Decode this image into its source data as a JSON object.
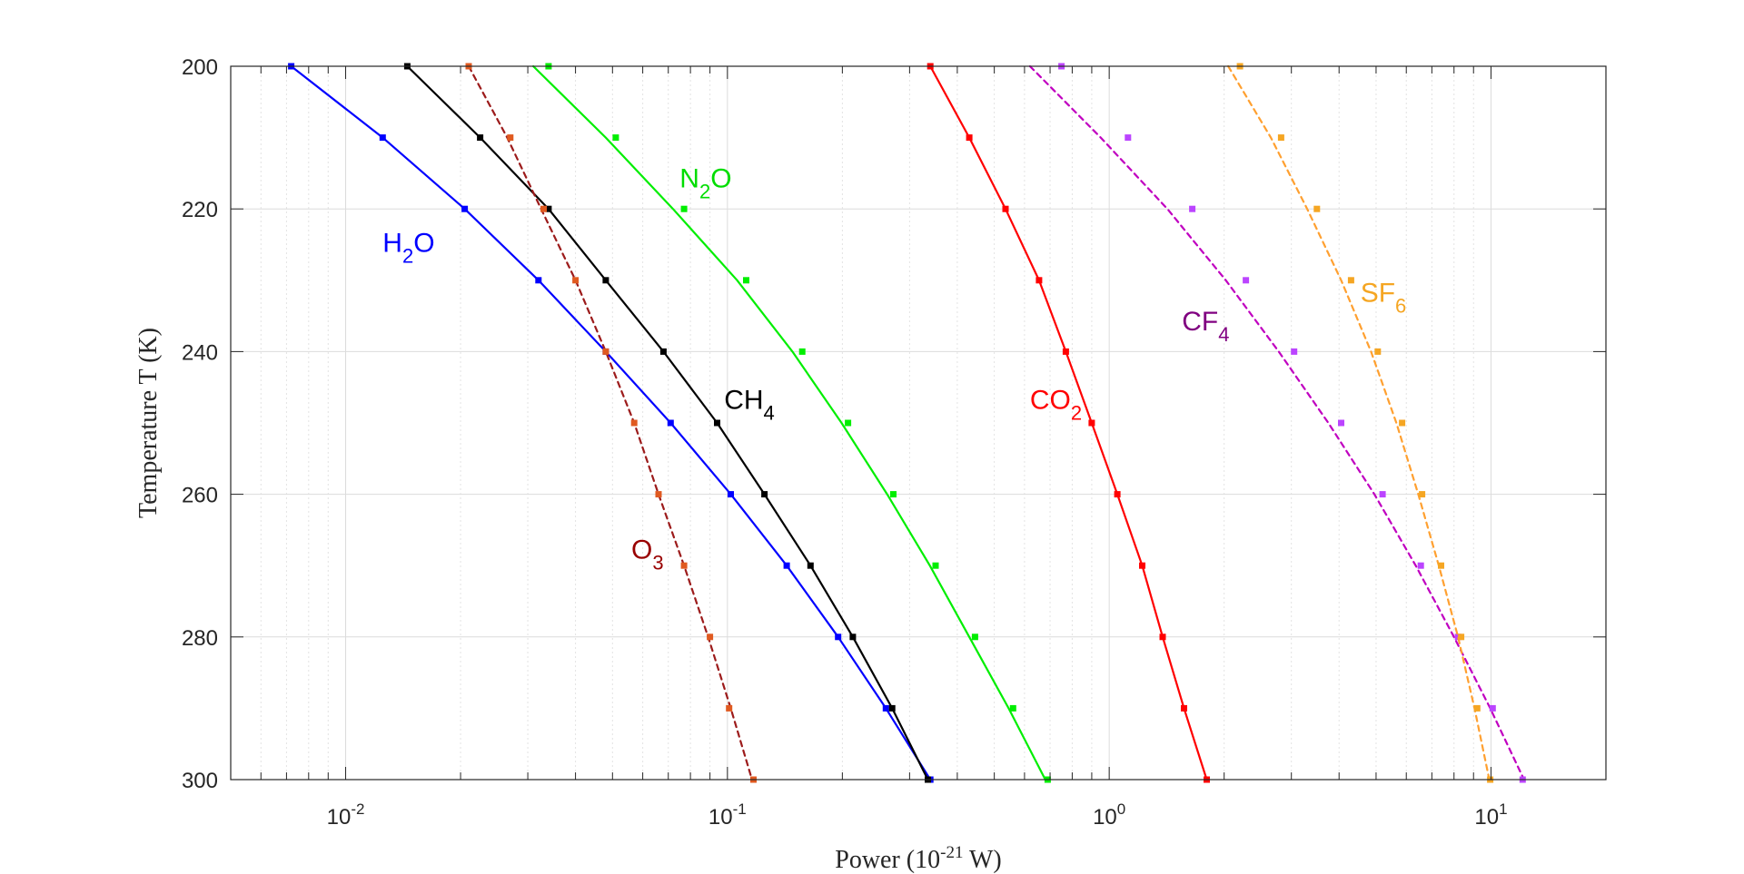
{
  "chart_data": {
    "type": "line",
    "title": "",
    "xlabel": "Power (10",
    "xlabel_exp": "-21",
    "xlabel_unit": " W)",
    "ylabel": "Temperature T (K)",
    "x_scale": "log",
    "xlim": [
      0.005,
      20
    ],
    "ylim": [
      200,
      300
    ],
    "y_reversed": true,
    "grid": true,
    "y_ticks": [
      200,
      220,
      240,
      260,
      280,
      300
    ],
    "y_tick_labels": [
      "200",
      "220",
      "240",
      "260",
      "280",
      "300"
    ],
    "x_ticks": [
      {
        "value": 0.01,
        "base": "10",
        "exp": "-2"
      },
      {
        "value": 0.1,
        "base": "10",
        "exp": "-1"
      },
      {
        "value": 1,
        "base": "10",
        "exp": "0"
      },
      {
        "value": 10,
        "base": "10",
        "exp": "1"
      }
    ],
    "temperatures": [
      200,
      210,
      220,
      230,
      240,
      250,
      260,
      270,
      280,
      290,
      300
    ],
    "series": [
      {
        "name": "H2O",
        "label_base": "H",
        "label_sub": "2",
        "label_post": "O",
        "label_color": "#0000ff",
        "line_color": "#0000ff",
        "marker_color": "#0000ff",
        "style": "solid",
        "label_at": {
          "x": 0.0125,
          "y": 226
        },
        "points": [
          0.0072,
          0.0125,
          0.0205,
          0.032,
          0.048,
          0.071,
          0.102,
          0.143,
          0.195,
          0.26,
          0.34
        ],
        "fit": [
          0.0072,
          0.0125,
          0.0205,
          0.032,
          0.048,
          0.071,
          0.102,
          0.143,
          0.195,
          0.26,
          0.34
        ]
      },
      {
        "name": "CH4",
        "label_base": "CH",
        "label_sub": "4",
        "label_post": "",
        "label_color": "#000000",
        "line_color": "#000000",
        "marker_color": "#000000",
        "style": "solid",
        "label_at": {
          "x": 0.098,
          "y": 248
        },
        "points": [
          0.0145,
          0.0225,
          0.034,
          0.048,
          0.068,
          0.094,
          0.125,
          0.165,
          0.213,
          0.27,
          0.335
        ],
        "fit": [
          0.0145,
          0.0225,
          0.034,
          0.048,
          0.068,
          0.094,
          0.125,
          0.165,
          0.213,
          0.27,
          0.335
        ]
      },
      {
        "name": "O3",
        "label_base": "O",
        "label_sub": "3",
        "label_post": "",
        "label_color": "#990000",
        "line_color": "#9c1b1b",
        "marker_color": "#e05a20",
        "style": "dashed",
        "label_at": {
          "x": 0.056,
          "y": 269
        },
        "points": [
          0.021,
          0.027,
          0.033,
          0.04,
          0.048,
          0.057,
          0.066,
          0.077,
          0.09,
          0.101,
          0.117
        ],
        "fit": [
          0.021,
          0.0265,
          0.0325,
          0.04,
          0.048,
          0.057,
          0.066,
          0.077,
          0.089,
          0.102,
          0.116
        ]
      },
      {
        "name": "N2O",
        "label_base": "N",
        "label_sub": "2",
        "label_post": "O",
        "label_color": "#00dd00",
        "line_color": "#00ee00",
        "marker_color": "#00ee00",
        "style": "solid",
        "label_at": {
          "x": 0.075,
          "y": 217
        },
        "points": [
          0.034,
          0.051,
          0.077,
          0.112,
          0.157,
          0.207,
          0.272,
          0.351,
          0.445,
          0.56,
          0.69
        ],
        "fit": [
          0.031,
          0.048,
          0.072,
          0.106,
          0.148,
          0.199,
          0.262,
          0.339,
          0.43,
          0.545,
          0.68
        ]
      },
      {
        "name": "CO2",
        "label_base": "CO",
        "label_sub": "2",
        "label_post": "",
        "label_color": "#ff0000",
        "line_color": "#ff0000",
        "marker_color": "#ff0000",
        "style": "solid",
        "label_at": {
          "x": 0.62,
          "y": 248
        },
        "points": [
          0.34,
          0.43,
          0.535,
          0.655,
          0.77,
          0.9,
          1.05,
          1.22,
          1.38,
          1.57,
          1.8
        ],
        "fit": [
          0.34,
          0.43,
          0.535,
          0.655,
          0.77,
          0.9,
          1.05,
          1.22,
          1.38,
          1.57,
          1.8
        ]
      },
      {
        "name": "CF4",
        "label_base": "CF",
        "label_sub": "4",
        "label_post": "",
        "label_color": "#800080",
        "line_color": "#c000c0",
        "marker_color": "#bb44ff",
        "style": "dashed",
        "label_at": {
          "x": 1.55,
          "y": 237
        },
        "points": [
          0.75,
          1.12,
          1.65,
          2.28,
          3.05,
          4.05,
          5.2,
          6.55,
          8.2,
          10.1,
          12.1
        ],
        "fit": [
          0.62,
          0.95,
          1.42,
          2.02,
          2.78,
          3.75,
          4.95,
          6.35,
          8.0,
          9.95,
          12.2
        ]
      },
      {
        "name": "SF6",
        "label_base": "SF",
        "label_sub": "6",
        "label_post": "",
        "label_color": "#f5a623",
        "line_color": "#ffa030",
        "marker_color": "#f5a623",
        "style": "dashed",
        "label_at": {
          "x": 4.55,
          "y": 233
        },
        "points": [
          2.2,
          2.82,
          3.5,
          4.3,
          5.05,
          5.85,
          6.6,
          7.4,
          8.35,
          9.2,
          9.95
        ],
        "fit": [
          2.05,
          2.65,
          3.3,
          4.05,
          4.85,
          5.65,
          6.45,
          7.3,
          8.2,
          9.05,
          9.9
        ]
      }
    ]
  }
}
